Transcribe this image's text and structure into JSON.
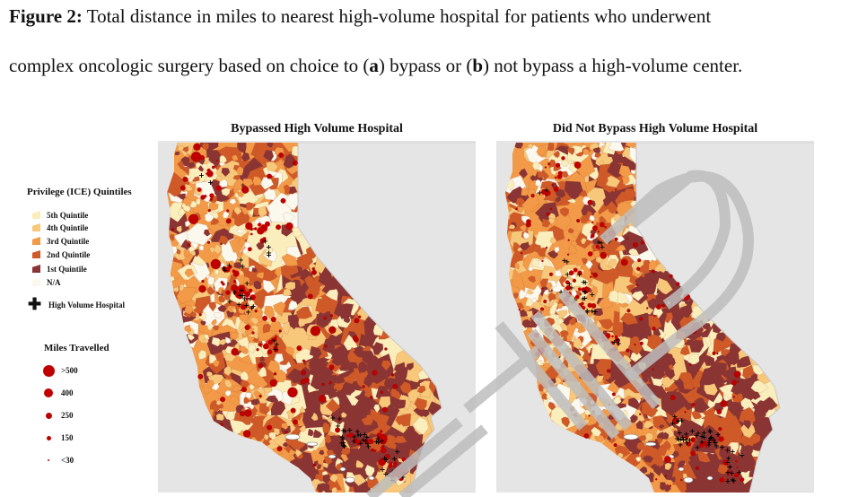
{
  "caption": {
    "label": "Figure 2:",
    "line1_rest": " Total distance in miles to nearest high-volume hospital for patients who underwent",
    "line2_a": "complex oncologic surgery based on choice to (",
    "a": "a",
    "line2_b": ") bypass or (",
    "b": "b",
    "line2_c": ") not bypass a high-volume center."
  },
  "panels": {
    "a_title": "Bypassed High Volume Hospital",
    "b_title": "Did Not Bypass High Volume Hospital"
  },
  "legend": {
    "privilege_title": "Privilege (ICE) Quintiles",
    "quintiles": [
      {
        "label": "5th Quintile",
        "color": "#fbeebd"
      },
      {
        "label": "4th Quintile",
        "color": "#f7c77a"
      },
      {
        "label": "3rd Quintile",
        "color": "#f29a47"
      },
      {
        "label": "2nd Quintile",
        "color": "#cf5a28"
      },
      {
        "label": "1st Quintile",
        "color": "#8a3433"
      },
      {
        "label": "N/A",
        "color": "#fbf8ee"
      }
    ],
    "hospital_label": "High Volume Hospital",
    "miles_title": "Miles Travelled",
    "miles": [
      ">500",
      "400",
      "250",
      "150",
      "<30"
    ]
  },
  "colors": {
    "marker": "#c00000",
    "background_sea": "#e5e5e5",
    "watermark": "#bdbdbd"
  },
  "watermark_text": "DTP"
}
